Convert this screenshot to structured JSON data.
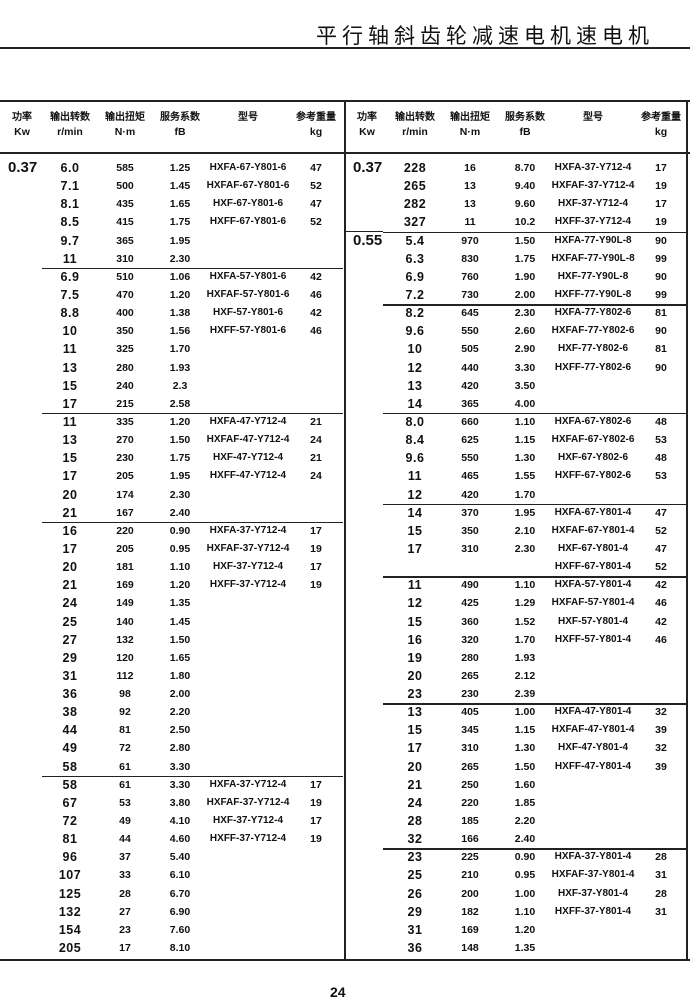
{
  "page_title": "平行轴斜齿轮减速电机速电机",
  "page_number": "24",
  "headers": [
    {
      "cn": "功率",
      "en": "Kw"
    },
    {
      "cn": "输出转数",
      "en": "r/min"
    },
    {
      "cn": "输出扭矩",
      "en": "N·m"
    },
    {
      "cn": "服务系数",
      "en": "fB"
    },
    {
      "cn": "型号",
      "en": ""
    },
    {
      "cn": "参考重量",
      "en": "kg"
    }
  ],
  "left_table": [
    {
      "power": "0.37",
      "rows": [
        [
          "6.0",
          "585",
          "1.25",
          "HXFA-67-Y801-6",
          "47"
        ],
        [
          "7.1",
          "500",
          "1.45",
          "HXFAF-67-Y801-6",
          "52"
        ],
        [
          "8.1",
          "435",
          "1.65",
          "HXF-67-Y801-6",
          "47"
        ],
        [
          "8.5",
          "415",
          "1.75",
          "HXFF-67-Y801-6",
          "52"
        ],
        [
          "9.7",
          "365",
          "1.95",
          "",
          ""
        ],
        [
          "11",
          "310",
          "2.30",
          "",
          ""
        ]
      ]
    },
    {
      "power": "",
      "rows": [
        [
          "6.9",
          "510",
          "1.06",
          "HXFA-57-Y801-6",
          "42"
        ],
        [
          "7.5",
          "470",
          "1.20",
          "HXFAF-57-Y801-6",
          "46"
        ],
        [
          "8.8",
          "400",
          "1.38",
          "HXF-57-Y801-6",
          "42"
        ],
        [
          "10",
          "350",
          "1.56",
          "HXFF-57-Y801-6",
          "46"
        ],
        [
          "11",
          "325",
          "1.70",
          "",
          ""
        ],
        [
          "13",
          "280",
          "1.93",
          "",
          ""
        ],
        [
          "15",
          "240",
          "2.3",
          "",
          ""
        ],
        [
          "17",
          "215",
          "2.58",
          "",
          ""
        ]
      ]
    },
    {
      "power": "",
      "rows": [
        [
          "11",
          "335",
          "1.20",
          "HXFA-47-Y712-4",
          "21"
        ],
        [
          "13",
          "270",
          "1.50",
          "HXFAF-47-Y712-4",
          "24"
        ],
        [
          "15",
          "230",
          "1.75",
          "HXF-47-Y712-4",
          "21"
        ],
        [
          "17",
          "205",
          "1.95",
          "HXFF-47-Y712-4",
          "24"
        ],
        [
          "20",
          "174",
          "2.30",
          "",
          ""
        ],
        [
          "21",
          "167",
          "2.40",
          "",
          ""
        ]
      ]
    },
    {
      "power": "",
      "rows": [
        [
          "16",
          "220",
          "0.90",
          "HXFA-37-Y712-4",
          "17"
        ],
        [
          "17",
          "205",
          "0.95",
          "HXFAF-37-Y712-4",
          "19"
        ],
        [
          "20",
          "181",
          "1.10",
          "HXF-37-Y712-4",
          "17"
        ],
        [
          "21",
          "169",
          "1.20",
          "HXFF-37-Y712-4",
          "19"
        ],
        [
          "24",
          "149",
          "1.35",
          "",
          ""
        ],
        [
          "25",
          "140",
          "1.45",
          "",
          ""
        ],
        [
          "27",
          "132",
          "1.50",
          "",
          ""
        ],
        [
          "29",
          "120",
          "1.65",
          "",
          ""
        ],
        [
          "31",
          "112",
          "1.80",
          "",
          ""
        ],
        [
          "36",
          "98",
          "2.00",
          "",
          ""
        ],
        [
          "38",
          "92",
          "2.20",
          "",
          ""
        ],
        [
          "44",
          "81",
          "2.50",
          "",
          ""
        ],
        [
          "49",
          "72",
          "2.80",
          "",
          ""
        ],
        [
          "58",
          "61",
          "3.30",
          "",
          ""
        ]
      ]
    },
    {
      "power": "",
      "rows": [
        [
          "58",
          "61",
          "3.30",
          "HXFA-37-Y712-4",
          "17"
        ],
        [
          "67",
          "53",
          "3.80",
          "HXFAF-37-Y712-4",
          "19"
        ],
        [
          "72",
          "49",
          "4.10",
          "HXF-37-Y712-4",
          "17"
        ],
        [
          "81",
          "44",
          "4.60",
          "HXFF-37-Y712-4",
          "19"
        ],
        [
          "96",
          "37",
          "5.40",
          "",
          ""
        ],
        [
          "107",
          "33",
          "6.10",
          "",
          ""
        ],
        [
          "125",
          "28",
          "6.70",
          "",
          ""
        ],
        [
          "132",
          "27",
          "6.90",
          "",
          ""
        ],
        [
          "154",
          "23",
          "7.60",
          "",
          ""
        ],
        [
          "205",
          "17",
          "8.10",
          "",
          ""
        ]
      ]
    }
  ],
  "right_table": [
    {
      "power": "0.37",
      "rows": [
        [
          "228",
          "16",
          "8.70",
          "HXFA-37-Y712-4",
          "17"
        ],
        [
          "265",
          "13",
          "9.40",
          "HXFAF-37-Y712-4",
          "19"
        ],
        [
          "282",
          "13",
          "9.60",
          "HXF-37-Y712-4",
          "17"
        ],
        [
          "327",
          "11",
          "10.2",
          "HXFF-37-Y712-4",
          "19"
        ]
      ]
    },
    {
      "power": "0.55",
      "rows": [
        [
          "5.4",
          "970",
          "1.50",
          "HXFA-77-Y90L-8",
          "90"
        ],
        [
          "6.3",
          "830",
          "1.75",
          "HXFAF-77-Y90L-8",
          "99"
        ],
        [
          "6.9",
          "760",
          "1.90",
          "HXF-77-Y90L-8",
          "90"
        ],
        [
          "7.2",
          "730",
          "2.00",
          "HXFF-77-Y90L-8",
          "99"
        ]
      ]
    },
    {
      "power": "",
      "rows": [
        [
          "8.2",
          "645",
          "2.30",
          "HXFA-77-Y802-6",
          "81"
        ],
        [
          "9.6",
          "550",
          "2.60",
          "HXFAF-77-Y802-6",
          "90"
        ],
        [
          "10",
          "505",
          "2.90",
          "HXF-77-Y802-6",
          "81"
        ],
        [
          "12",
          "440",
          "3.30",
          "HXFF-77-Y802-6",
          "90"
        ],
        [
          "13",
          "420",
          "3.50",
          "",
          ""
        ],
        [
          "14",
          "365",
          "4.00",
          "",
          ""
        ]
      ]
    },
    {
      "power": "",
      "rows": [
        [
          "8.0",
          "660",
          "1.10",
          "HXFA-67-Y802-6",
          "48"
        ],
        [
          "8.4",
          "625",
          "1.15",
          "HXFAF-67-Y802-6",
          "53"
        ],
        [
          "9.6",
          "550",
          "1.30",
          "HXF-67-Y802-6",
          "48"
        ],
        [
          "11",
          "465",
          "1.55",
          "HXFF-67-Y802-6",
          "53"
        ],
        [
          "12",
          "420",
          "1.70",
          "",
          ""
        ]
      ]
    },
    {
      "power": "",
      "rows": [
        [
          "14",
          "370",
          "1.95",
          "HXFA-67-Y801-4",
          "47"
        ],
        [
          "15",
          "350",
          "2.10",
          "HXFAF-67-Y801-4",
          "52"
        ],
        [
          "17",
          "310",
          "2.30",
          "HXF-67-Y801-4",
          "47"
        ],
        [
          "",
          "",
          "",
          "HXFF-67-Y801-4",
          "52"
        ]
      ]
    },
    {
      "power": "",
      "rows": [
        [
          "11",
          "490",
          "1.10",
          "HXFA-57-Y801-4",
          "42"
        ],
        [
          "12",
          "425",
          "1.29",
          "HXFAF-57-Y801-4",
          "46"
        ],
        [
          "15",
          "360",
          "1.52",
          "HXF-57-Y801-4",
          "42"
        ],
        [
          "16",
          "320",
          "1.70",
          "HXFF-57-Y801-4",
          "46"
        ],
        [
          "19",
          "280",
          "1.93",
          "",
          ""
        ],
        [
          "20",
          "265",
          "2.12",
          "",
          ""
        ],
        [
          "23",
          "230",
          "2.39",
          "",
          ""
        ]
      ]
    },
    {
      "power": "",
      "rows": [
        [
          "13",
          "405",
          "1.00",
          "HXFA-47-Y801-4",
          "32"
        ],
        [
          "15",
          "345",
          "1.15",
          "HXFAF-47-Y801-4",
          "39"
        ],
        [
          "17",
          "310",
          "1.30",
          "HXF-47-Y801-4",
          "32"
        ],
        [
          "20",
          "265",
          "1.50",
          "HXFF-47-Y801-4",
          "39"
        ],
        [
          "21",
          "250",
          "1.60",
          "",
          ""
        ],
        [
          "24",
          "220",
          "1.85",
          "",
          ""
        ],
        [
          "28",
          "185",
          "2.20",
          "",
          ""
        ],
        [
          "32",
          "166",
          "2.40",
          "",
          ""
        ]
      ]
    },
    {
      "power": "",
      "rows": [
        [
          "23",
          "225",
          "0.90",
          "HXFA-37-Y801-4",
          "28"
        ],
        [
          "25",
          "210",
          "0.95",
          "HXFAF-37-Y801-4",
          "31"
        ],
        [
          "26",
          "200",
          "1.00",
          "HXF-37-Y801-4",
          "28"
        ],
        [
          "29",
          "182",
          "1.10",
          "HXFF-37-Y801-4",
          "31"
        ],
        [
          "31",
          "169",
          "1.20",
          "",
          ""
        ],
        [
          "36",
          "148",
          "1.35",
          "",
          ""
        ]
      ]
    }
  ]
}
